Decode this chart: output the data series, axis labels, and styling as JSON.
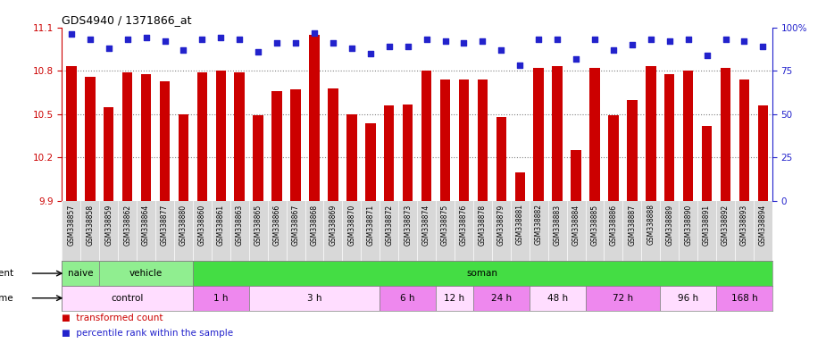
{
  "title": "GDS4940 / 1371866_at",
  "samples": [
    "GSM338857",
    "GSM338858",
    "GSM338859",
    "GSM338862",
    "GSM338864",
    "GSM338877",
    "GSM338880",
    "GSM338860",
    "GSM338861",
    "GSM338863",
    "GSM338865",
    "GSM338866",
    "GSM338867",
    "GSM338868",
    "GSM338869",
    "GSM338870",
    "GSM338871",
    "GSM338872",
    "GSM338873",
    "GSM338874",
    "GSM338875",
    "GSM338876",
    "GSM338878",
    "GSM338879",
    "GSM338881",
    "GSM338882",
    "GSM338883",
    "GSM338884",
    "GSM338885",
    "GSM338886",
    "GSM338887",
    "GSM338888",
    "GSM338889",
    "GSM338890",
    "GSM338891",
    "GSM338892",
    "GSM338893",
    "GSM338894"
  ],
  "bar_values": [
    10.83,
    10.76,
    10.55,
    10.79,
    10.78,
    10.73,
    10.5,
    10.79,
    10.8,
    10.79,
    10.49,
    10.66,
    10.67,
    11.05,
    10.68,
    10.5,
    10.44,
    10.56,
    10.57,
    10.8,
    10.74,
    10.74,
    10.74,
    10.48,
    10.1,
    10.82,
    10.83,
    10.25,
    10.82,
    10.49,
    10.6,
    10.83,
    10.78,
    10.8,
    10.42,
    10.82,
    10.74,
    10.56
  ],
  "percentile_values": [
    96,
    93,
    88,
    93,
    94,
    92,
    87,
    93,
    94,
    93,
    86,
    91,
    91,
    97,
    91,
    88,
    85,
    89,
    89,
    93,
    92,
    91,
    92,
    87,
    78,
    93,
    93,
    82,
    93,
    87,
    90,
    93,
    92,
    93,
    84,
    93,
    92,
    89
  ],
  "bar_color": "#cc0000",
  "percentile_color": "#2222cc",
  "ylim_left": [
    9.9,
    11.1
  ],
  "ylim_right": [
    0,
    100
  ],
  "yticks_left": [
    9.9,
    10.2,
    10.5,
    10.8,
    11.1
  ],
  "yticks_right": [
    0,
    25,
    50,
    75,
    100
  ],
  "agent_groups": [
    {
      "label": "naive",
      "start": 0,
      "end": 2,
      "color": "#90ee90"
    },
    {
      "label": "vehicle",
      "start": 2,
      "end": 7,
      "color": "#90ee90"
    },
    {
      "label": "soman",
      "start": 7,
      "end": 38,
      "color": "#44dd44"
    }
  ],
  "time_groups": [
    {
      "label": "control",
      "start": 0,
      "end": 7,
      "color": "#ffddff"
    },
    {
      "label": "1 h",
      "start": 7,
      "end": 10,
      "color": "#ee88ee"
    },
    {
      "label": "3 h",
      "start": 10,
      "end": 17,
      "color": "#ffddff"
    },
    {
      "label": "6 h",
      "start": 17,
      "end": 20,
      "color": "#ee88ee"
    },
    {
      "label": "12 h",
      "start": 20,
      "end": 22,
      "color": "#ffddff"
    },
    {
      "label": "24 h",
      "start": 22,
      "end": 25,
      "color": "#ee88ee"
    },
    {
      "label": "48 h",
      "start": 25,
      "end": 28,
      "color": "#ffddff"
    },
    {
      "label": "72 h",
      "start": 28,
      "end": 32,
      "color": "#ee88ee"
    },
    {
      "label": "96 h",
      "start": 32,
      "end": 35,
      "color": "#ffddff"
    },
    {
      "label": "168 h",
      "start": 35,
      "end": 38,
      "color": "#ee88ee"
    }
  ]
}
